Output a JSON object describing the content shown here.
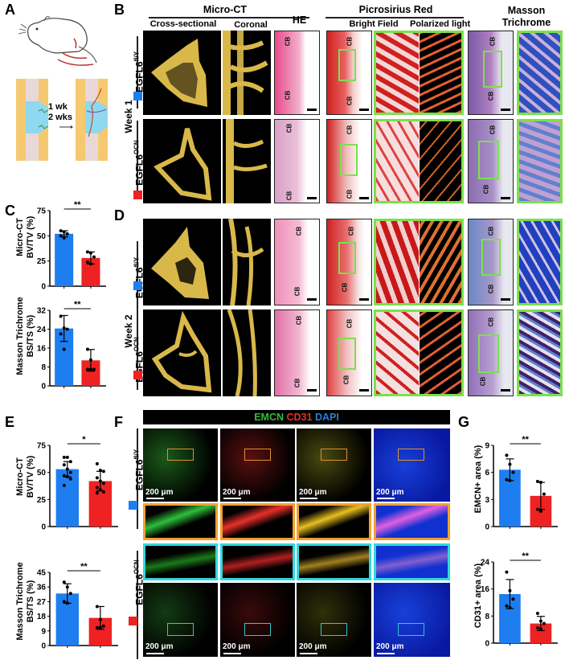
{
  "panels": {
    "A": {
      "letter": "A",
      "arrow_text_1": "1 wk",
      "arrow_text_2": "2 wks"
    },
    "B": {
      "letter": "B",
      "row_group": "Week 1"
    },
    "C": {
      "letter": "C"
    },
    "D": {
      "letter": "D",
      "row_group": "Week 2"
    },
    "E": {
      "letter": "E"
    },
    "F": {
      "letter": "F",
      "header": {
        "emcn": "EMCN",
        "cd31": "CD31",
        "dapi": "DAPI"
      },
      "scale_label": "200 μm"
    },
    "G": {
      "letter": "G"
    }
  },
  "headers": {
    "micro_ct": "Micro-CT",
    "cross_sectional": "Cross-sectional",
    "coronal": "Coronal",
    "he": "HE",
    "picrosirius": "Picrosirius Red",
    "bright_field": "Bright Field",
    "polarized": "Polarized light",
    "masson_1": "Masson",
    "masson_2": "Trichrome"
  },
  "groups": {
    "control": {
      "label": "EGFL6",
      "sup": "fl/Y",
      "color": "#1e7ef0"
    },
    "ko": {
      "label": "EGFL6",
      "sup": "OCN",
      "color": "#ee2222"
    }
  },
  "tissue_label": "CB",
  "colors": {
    "blue": "#1e7ef0",
    "red": "#ee2222",
    "green_box": "#7be04d",
    "orange_box": "#f0a030",
    "cyan_box": "#30d8e0",
    "emcn": "#2fbf3a",
    "cd31": "#e8302a",
    "dapi": "#2a7fd6"
  },
  "chart_data": [
    {
      "id": "C-top",
      "type": "bar",
      "title": "",
      "xlabel": "",
      "ylabel": "Micro-CT BV/TV (%)",
      "ylim": [
        0,
        75
      ],
      "yticks": [
        0,
        25,
        50,
        75
      ],
      "categories": [
        "EGFL6fl/Y",
        "EGFL6OCN"
      ],
      "values": [
        52,
        28
      ],
      "errors": [
        3,
        6
      ],
      "points": [
        [
          55,
          54,
          52,
          50,
          48
        ],
        [
          34,
          33,
          29,
          24,
          22
        ]
      ],
      "significance": "**"
    },
    {
      "id": "C-bottom",
      "type": "bar",
      "title": "",
      "xlabel": "",
      "ylabel": "Masson Trichrome BS/TS (%)",
      "ylim": [
        0,
        32
      ],
      "yticks": [
        0,
        8,
        16,
        24,
        32
      ],
      "categories": [
        "EGFL6fl/Y",
        "EGFL6OCN"
      ],
      "values": [
        24.3,
        10.8
      ],
      "errors": [
        5.5,
        4.6
      ],
      "points": [
        [
          29.5,
          24.5,
          24,
          22,
          15.5
        ],
        [
          15.5,
          11,
          7,
          7,
          7
        ]
      ],
      "significance": "**"
    },
    {
      "id": "E-top",
      "type": "bar",
      "title": "",
      "xlabel": "",
      "ylabel": "Micro-CT BV/TV (%)",
      "ylim": [
        0,
        75
      ],
      "yticks": [
        0,
        25,
        50,
        75
      ],
      "categories": [
        "EGFL6fl/Y",
        "EGFL6OCN"
      ],
      "values": [
        53,
        42
      ],
      "errors": [
        7,
        9
      ],
      "points": [
        [
          64,
          64,
          60,
          57,
          53,
          50,
          47,
          46,
          44,
          38
        ],
        [
          58,
          52,
          51,
          45,
          42,
          40,
          36,
          34,
          32,
          31
        ]
      ],
      "significance": "*"
    },
    {
      "id": "E-bottom",
      "type": "bar",
      "title": "",
      "xlabel": "",
      "ylabel": "Masson Trichrome BS/TS (%)",
      "ylim": [
        0,
        45
      ],
      "yticks": [
        0,
        9,
        18,
        27,
        36,
        45
      ],
      "categories": [
        "EGFL6fl/Y",
        "EGFL6OCN"
      ],
      "values": [
        32,
        17
      ],
      "errors": [
        6,
        7
      ],
      "points": [
        [
          39,
          36,
          32,
          27,
          26
        ],
        [
          24,
          16,
          12,
          11,
          11
        ]
      ],
      "significance": "**"
    },
    {
      "id": "G-top",
      "type": "bar",
      "title": "",
      "xlabel": "",
      "ylabel": "EMCN+ area (%)",
      "ylim": [
        0,
        9
      ],
      "yticks": [
        0,
        3,
        6,
        9
      ],
      "categories": [
        "EGFL6fl/Y",
        "EGFL6OCN"
      ],
      "values": [
        6.3,
        3.4
      ],
      "errors": [
        1.2,
        1.5
      ],
      "points": [
        [
          7.9,
          6.9,
          6.0,
          5.2,
          5.1
        ],
        [
          5.0,
          4.9,
          3.6,
          1.9,
          1.7
        ]
      ],
      "significance": "**"
    },
    {
      "id": "G-bottom",
      "type": "bar",
      "title": "",
      "xlabel": "",
      "ylabel": "CD31+ area (%)",
      "ylim": [
        0,
        24
      ],
      "yticks": [
        0,
        8,
        16,
        24
      ],
      "categories": [
        "EGFL6fl/Y",
        "EGFL6OCN"
      ],
      "values": [
        14.5,
        5.8
      ],
      "errors": [
        4.3,
        2.1
      ],
      "points": [
        [
          21,
          15.5,
          13,
          11,
          10.5
        ],
        [
          8.8,
          6.5,
          5.8,
          4.5,
          4.2
        ]
      ],
      "significance": "**"
    }
  ]
}
